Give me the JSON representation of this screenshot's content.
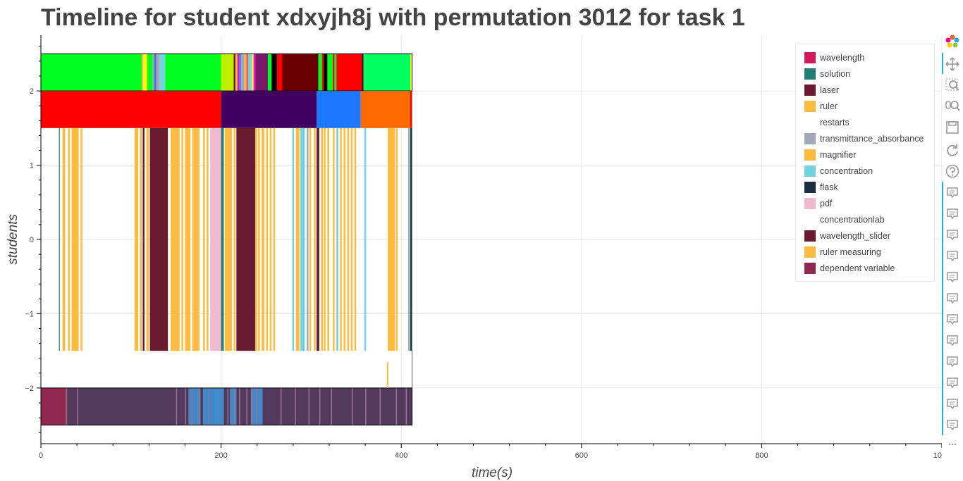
{
  "chart_data": {
    "type": "timeline",
    "title": "Timeline for student xdxyjh8j with permutation 3012 for task 1",
    "xlabel": "time(s)",
    "ylabel": "students",
    "xlim": [
      0,
      1000
    ],
    "ylim": [
      -2.75,
      2.75
    ],
    "xticks": [
      0,
      200,
      400,
      600,
      800,
      1000
    ],
    "yticks": [
      2,
      1,
      0,
      -1,
      -2
    ],
    "ytick_labels": [
      "2",
      "1",
      "0",
      "−1",
      "−2"
    ],
    "grid": true,
    "legend_position": "top-right",
    "legend": [
      {
        "label": "wavelength",
        "color": "#d6185a"
      },
      {
        "label": "solution",
        "color": "#227e74"
      },
      {
        "label": "laser",
        "color": "#6b1b30"
      },
      {
        "label": "ruler",
        "color": "#fdbb40"
      },
      {
        "label": "restarts",
        "color": "#ffffff"
      },
      {
        "label": "transmittance_absorbance",
        "color": "#9eaab9"
      },
      {
        "label": "magnifier",
        "color": "#fdbb40"
      },
      {
        "label": "concentration",
        "color": "#72d3df"
      },
      {
        "label": "flask",
        "color": "#1b2d3e"
      },
      {
        "label": "pdf",
        "color": "#efb9d0"
      },
      {
        "label": "concentrationlab",
        "color": "#ffffff"
      },
      {
        "label": "wavelength_slider",
        "color": "#6b1b30"
      },
      {
        "label": "ruler measuring",
        "color": "#fdbb40"
      },
      {
        "label": "dependent variable",
        "color": "#902850"
      }
    ],
    "rows": [
      {
        "y_range": [
          2,
          2.5
        ],
        "segments": [
          [
            0,
            112,
            "#00ff20"
          ],
          [
            112,
            114,
            "#fdbb40"
          ],
          [
            114,
            118,
            "#ffff00"
          ],
          [
            118,
            124,
            "#00ff20"
          ],
          [
            124,
            126,
            "#9eaab9"
          ],
          [
            126,
            128,
            "#3a6fd0"
          ],
          [
            128,
            132,
            "#9eaab9"
          ],
          [
            132,
            138,
            "#72d3df"
          ],
          [
            138,
            200,
            "#00ff20"
          ],
          [
            200,
            214,
            "#bff000"
          ],
          [
            214,
            216,
            "#6b1b30"
          ],
          [
            216,
            218,
            "#ffd000"
          ],
          [
            218,
            220,
            "#ff00ff"
          ],
          [
            220,
            222,
            "#3a6fd0"
          ],
          [
            222,
            226,
            "#9eaab9"
          ],
          [
            226,
            228,
            "#fdbb40"
          ],
          [
            228,
            230,
            "#ff5050"
          ],
          [
            230,
            234,
            "#72d3df"
          ],
          [
            234,
            236,
            "#ffff00"
          ],
          [
            236,
            238,
            "#ff00ff"
          ],
          [
            238,
            252,
            "#7a1a6a"
          ],
          [
            252,
            256,
            "#00ff20"
          ],
          [
            256,
            262,
            "#000000"
          ],
          [
            262,
            268,
            "#ff0000"
          ],
          [
            268,
            308,
            "#690000"
          ],
          [
            308,
            312,
            "#00ff20"
          ],
          [
            312,
            314,
            "#ff0000"
          ],
          [
            314,
            318,
            "#000000"
          ],
          [
            318,
            324,
            "#00ff20"
          ],
          [
            324,
            326,
            "#ff0000"
          ],
          [
            326,
            328,
            "#00ff20"
          ],
          [
            328,
            356,
            "#ff0000"
          ],
          [
            356,
            358,
            "#600000"
          ],
          [
            358,
            410,
            "#00ff60"
          ],
          [
            410,
            412,
            "#ffff00"
          ]
        ]
      },
      {
        "y_range": [
          1.5,
          2
        ],
        "segments": [
          [
            0,
            200,
            "#ff0000"
          ],
          [
            200,
            306,
            "#420060"
          ],
          [
            306,
            355,
            "#1e78ff"
          ],
          [
            355,
            410,
            "#ff6a00"
          ],
          [
            410,
            412,
            "#ff0000"
          ]
        ]
      },
      {
        "y_range": [
          -1.5,
          1.5
        ],
        "segments": [
          [
            20,
            21,
            "#227e74"
          ],
          [
            24,
            27,
            "#fdbb40"
          ],
          [
            30,
            32,
            "#fdbb40"
          ],
          [
            34,
            42,
            "#fdbb40"
          ],
          [
            44,
            46,
            "#fdbb40"
          ],
          [
            104,
            108,
            "#fdbb40"
          ],
          [
            110,
            112,
            "#fdbb40"
          ],
          [
            113,
            115,
            "#6b1b30"
          ],
          [
            117,
            120,
            "#fdbb40"
          ],
          [
            121,
            141,
            "#6b1b30"
          ],
          [
            144,
            154,
            "#fdbb40"
          ],
          [
            156,
            158,
            "#fdbb40"
          ],
          [
            160,
            166,
            "#fdbb40"
          ],
          [
            168,
            176,
            "#fdbb40"
          ],
          [
            180,
            182,
            "#fdbb40"
          ],
          [
            184,
            186,
            "#fdbb40"
          ],
          [
            188,
            198,
            "#efb9d0"
          ],
          [
            198,
            200,
            "#efb9d0"
          ],
          [
            200,
            203,
            "#227e74"
          ],
          [
            204,
            212,
            "#fdbb40"
          ],
          [
            214,
            216,
            "#fdbb40"
          ],
          [
            217,
            238,
            "#6b1b30"
          ],
          [
            238,
            240,
            "#fdbb40"
          ],
          [
            241,
            243,
            "#fdbb40"
          ],
          [
            245,
            248,
            "#fdbb40"
          ],
          [
            250,
            252,
            "#fdbb40"
          ],
          [
            254,
            256,
            "#fdbb40"
          ],
          [
            258,
            260,
            "#fdbb40"
          ],
          [
            279,
            281,
            "#72d3df"
          ],
          [
            283,
            287,
            "#fdbb40"
          ],
          [
            288,
            293,
            "#72d3df"
          ],
          [
            295,
            297,
            "#9eaab9"
          ],
          [
            298,
            300,
            "#fdbb40"
          ],
          [
            303,
            305,
            "#fdbb40"
          ],
          [
            306,
            309,
            "#6b1b30"
          ],
          [
            311,
            313,
            "#fdbb40"
          ],
          [
            314,
            316,
            "#fdbb40"
          ],
          [
            318,
            320,
            "#fdbb40"
          ],
          [
            324,
            326,
            "#fdbb40"
          ],
          [
            328,
            330,
            "#72d3df"
          ],
          [
            332,
            334,
            "#fdbb40"
          ],
          [
            336,
            338,
            "#fdbb40"
          ],
          [
            340,
            342,
            "#fdbb40"
          ],
          [
            344,
            346,
            "#fdbb40"
          ],
          [
            348,
            350,
            "#fdbb40"
          ],
          [
            359,
            361,
            "#72d3df"
          ],
          [
            385,
            393,
            "#fdbb40"
          ],
          [
            394,
            396,
            "#fdbb40"
          ],
          [
            408,
            409,
            "#227e74"
          ],
          [
            410,
            412,
            "#1b2d3e"
          ]
        ]
      },
      {
        "y_range": [
          -2.5,
          -2
        ],
        "segments": [
          [
            0,
            28,
            "#902850"
          ],
          [
            28,
            29,
            "#a06070"
          ],
          [
            29,
            164,
            "#523a5e"
          ],
          [
            164,
            177,
            "#4189c8"
          ],
          [
            177,
            180,
            "#523a5e"
          ],
          [
            180,
            203,
            "#4189c8"
          ],
          [
            203,
            210,
            "#523a5e"
          ],
          [
            210,
            217,
            "#4189c8"
          ],
          [
            217,
            234,
            "#523a5e"
          ],
          [
            234,
            246,
            "#4189c8"
          ],
          [
            246,
            412,
            "#523a5e"
          ]
        ],
        "thin_lines": [
          40,
          150,
          160,
          167,
          175,
          186,
          207,
          214,
          220,
          228,
          233,
          239,
          266,
          282,
          297,
          309,
          322,
          345,
          360,
          376,
          394,
          405
        ]
      }
    ],
    "restart_marker": {
      "x": 384,
      "y_range": [
        -2,
        -1.65
      ],
      "color": "#fdbb40"
    }
  },
  "toolbar": {
    "items": [
      "bokeh-logo",
      "pan-tool",
      "box-zoom-tool",
      "wheel-zoom-tool",
      "save-tool",
      "reset-tool",
      "help-tool",
      "hover-tool",
      "hover-tool",
      "hover-tool",
      "hover-tool",
      "hover-tool",
      "hover-tool",
      "hover-tool",
      "hover-tool",
      "hover-tool",
      "hover-tool",
      "hover-tool",
      "hover-tool",
      "more-tools"
    ]
  }
}
